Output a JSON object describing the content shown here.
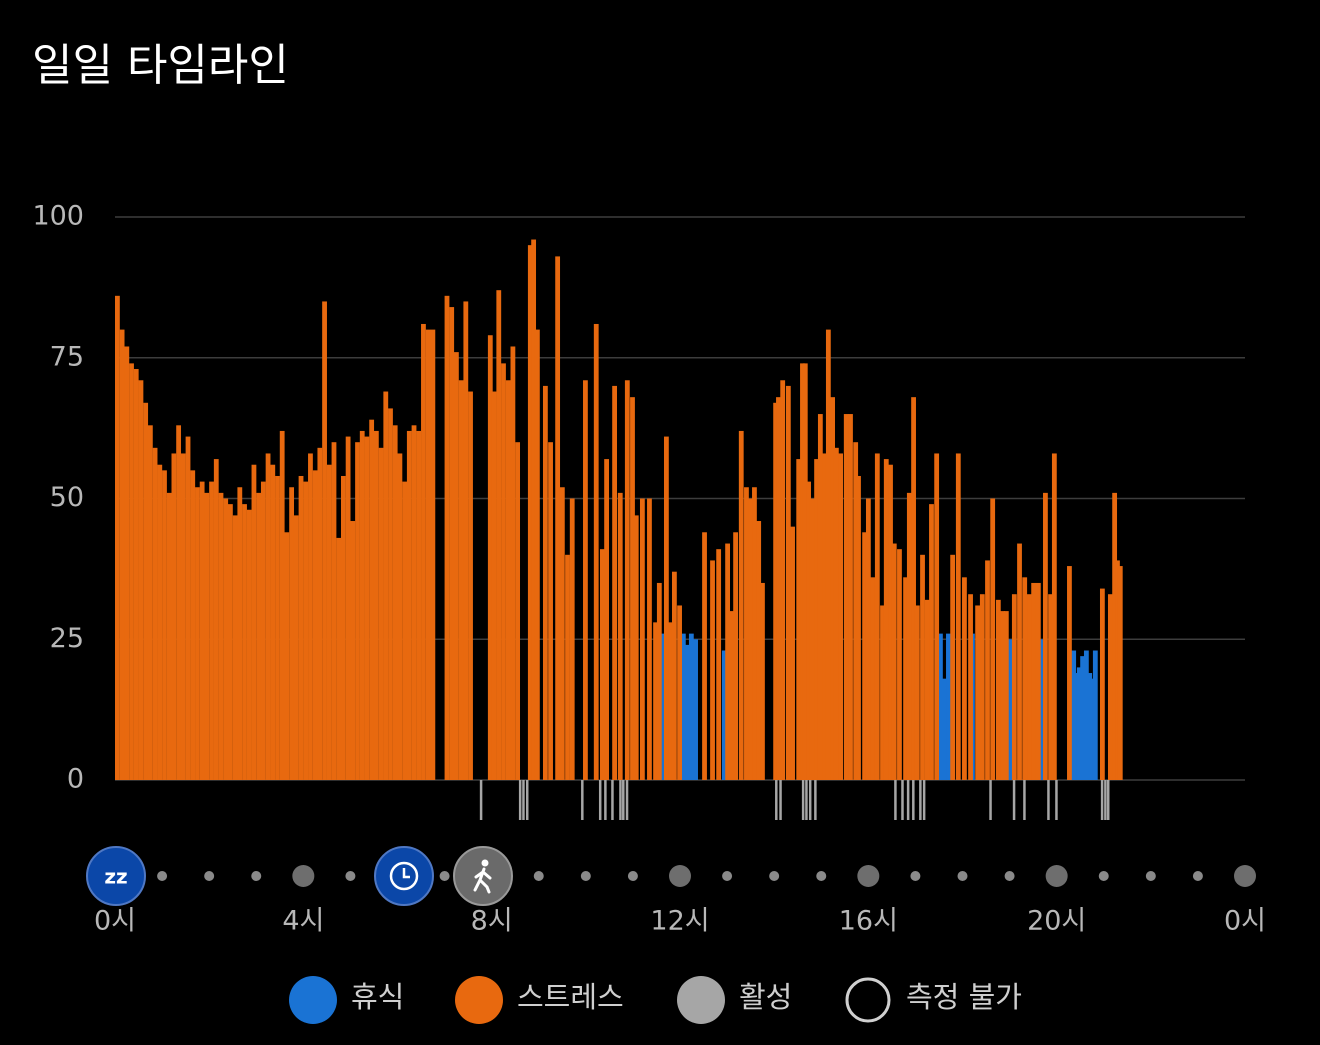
{
  "chart_data": {
    "type": "bar",
    "title": "일일 타임라인",
    "xlim": [
      0,
      24
    ],
    "ylim": [
      0,
      100
    ],
    "yticks": [
      0,
      25,
      50,
      75,
      100
    ],
    "xticks": [
      {
        "value": 0,
        "label": "0시"
      },
      {
        "value": 4,
        "label": "4시"
      },
      {
        "value": 8,
        "label": "8시"
      },
      {
        "value": 12,
        "label": "12시"
      },
      {
        "value": 16,
        "label": "16시"
      },
      {
        "value": 20,
        "label": "20시"
      },
      {
        "value": 24,
        "label": "0시"
      }
    ],
    "grid": true,
    "series": [
      {
        "name": "휴식",
        "color": "#1a73d4",
        "x": [
          11.58,
          12.02,
          12.11,
          12.19,
          12.28,
          12.89,
          17.48,
          17.57,
          17.65,
          18.16,
          18.97,
          19.63,
          20.24,
          20.31,
          20.37,
          20.43,
          20.5,
          20.58,
          20.65,
          20.71,
          20.77
        ],
        "values": [
          26,
          26,
          24,
          26,
          25,
          23,
          26,
          18,
          26,
          26,
          25,
          25,
          23,
          23,
          19,
          20,
          22,
          23,
          19,
          18,
          23
        ]
      },
      {
        "name": "스트레스",
        "color": "#e8690f",
        "x": [
          0.0,
          0.1,
          0.2,
          0.3,
          0.4,
          0.5,
          0.6,
          0.7,
          0.8,
          0.9,
          1.0,
          1.1,
          1.2,
          1.3,
          1.4,
          1.5,
          1.6,
          1.7,
          1.8,
          1.9,
          2.0,
          2.1,
          2.2,
          2.3,
          2.4,
          2.5,
          2.6,
          2.7,
          2.8,
          2.9,
          3.0,
          3.1,
          3.2,
          3.3,
          3.4,
          3.5,
          3.6,
          3.7,
          3.8,
          3.9,
          4.0,
          4.1,
          4.2,
          4.3,
          4.4,
          4.5,
          4.6,
          4.7,
          4.8,
          4.9,
          5.0,
          5.1,
          5.2,
          5.3,
          5.4,
          5.5,
          5.6,
          5.7,
          5.8,
          5.9,
          6.0,
          6.1,
          6.2,
          6.3,
          6.4,
          6.5,
          6.6,
          6.7,
          7.0,
          7.1,
          7.2,
          7.3,
          7.4,
          7.5,
          7.92,
          8.0,
          8.1,
          8.2,
          8.3,
          8.4,
          8.5,
          8.77,
          8.84,
          8.92,
          9.09,
          9.2,
          9.35,
          9.45,
          9.56,
          9.66,
          9.94,
          10.17,
          10.3,
          10.39,
          10.56,
          10.68,
          10.83,
          10.94,
          11.02,
          11.15,
          11.3,
          11.43,
          11.51,
          11.66,
          11.75,
          11.83,
          11.94,
          12.47,
          12.64,
          12.77,
          12.96,
          13.04,
          13.13,
          13.25,
          13.36,
          13.45,
          13.53,
          13.62,
          13.7,
          13.98,
          14.04,
          14.13,
          14.25,
          14.34,
          14.47,
          14.55,
          14.61,
          14.68,
          14.76,
          14.85,
          14.93,
          15.02,
          15.1,
          15.19,
          15.27,
          15.36,
          15.48,
          15.57,
          15.68,
          15.74,
          15.87,
          15.95,
          16.04,
          16.14,
          16.25,
          16.33,
          16.42,
          16.5,
          16.61,
          16.74,
          16.82,
          16.91,
          16.99,
          17.1,
          17.2,
          17.29,
          17.4,
          17.74,
          17.86,
          17.99,
          18.12,
          18.27,
          18.37,
          18.48,
          18.59,
          18.71,
          18.8,
          18.88,
          19.05,
          19.16,
          19.27,
          19.37,
          19.46,
          19.56,
          19.71,
          19.82,
          19.9,
          20.22,
          20.92,
          21.09,
          21.18,
          21.24,
          21.3
        ],
        "values": [
          86,
          80,
          77,
          74,
          73,
          71,
          67,
          63,
          59,
          56,
          55,
          51,
          58,
          63,
          58,
          61,
          55,
          52,
          53,
          51,
          53,
          57,
          51,
          50,
          49,
          47,
          52,
          49,
          48,
          56,
          51,
          53,
          58,
          56,
          54,
          62,
          44,
          52,
          47,
          54,
          53,
          58,
          55,
          59,
          85,
          56,
          60,
          43,
          54,
          61,
          46,
          60,
          62,
          61,
          64,
          62,
          59,
          69,
          66,
          63,
          58,
          53,
          62,
          63,
          62,
          81,
          80,
          80,
          86,
          84,
          76,
          71,
          85,
          69,
          79,
          69,
          87,
          74,
          71,
          77,
          60,
          95,
          96,
          80,
          70,
          60,
          93,
          52,
          40,
          50,
          71,
          81,
          41,
          57,
          70,
          51,
          71,
          68,
          47,
          50,
          50,
          28,
          35,
          61,
          28,
          37,
          31,
          44,
          39,
          41,
          42,
          30,
          44,
          62,
          52,
          50,
          52,
          46,
          35,
          67,
          68,
          71,
          70,
          45,
          57,
          74,
          74,
          53,
          50,
          57,
          65,
          58,
          80,
          68,
          59,
          58,
          65,
          65,
          60,
          54,
          44,
          50,
          36,
          58,
          31,
          57,
          56,
          42,
          41,
          36,
          51,
          68,
          31,
          40,
          32,
          49,
          58,
          40,
          58,
          36,
          33,
          31,
          33,
          39,
          50,
          32,
          30,
          30,
          33,
          42,
          36,
          33,
          35,
          35,
          51,
          33,
          58,
          38,
          34,
          33,
          51,
          39,
          38
        ]
      },
      {
        "name": "활성",
        "color": "#a6a6a6",
        "x": [
          7.77,
          8.6,
          8.67,
          8.75,
          9.92,
          10.3,
          10.41,
          10.56,
          10.73,
          10.79,
          10.87,
          14.04,
          14.13,
          14.61,
          14.68,
          14.76,
          14.87,
          16.57,
          16.72,
          16.84,
          16.95,
          17.1,
          17.18,
          18.59,
          19.09,
          19.31,
          19.82,
          19.99,
          20.96,
          21.03,
          21.09
        ]
      },
      {
        "name": "측정 불가",
        "color": "none"
      }
    ]
  }
}
